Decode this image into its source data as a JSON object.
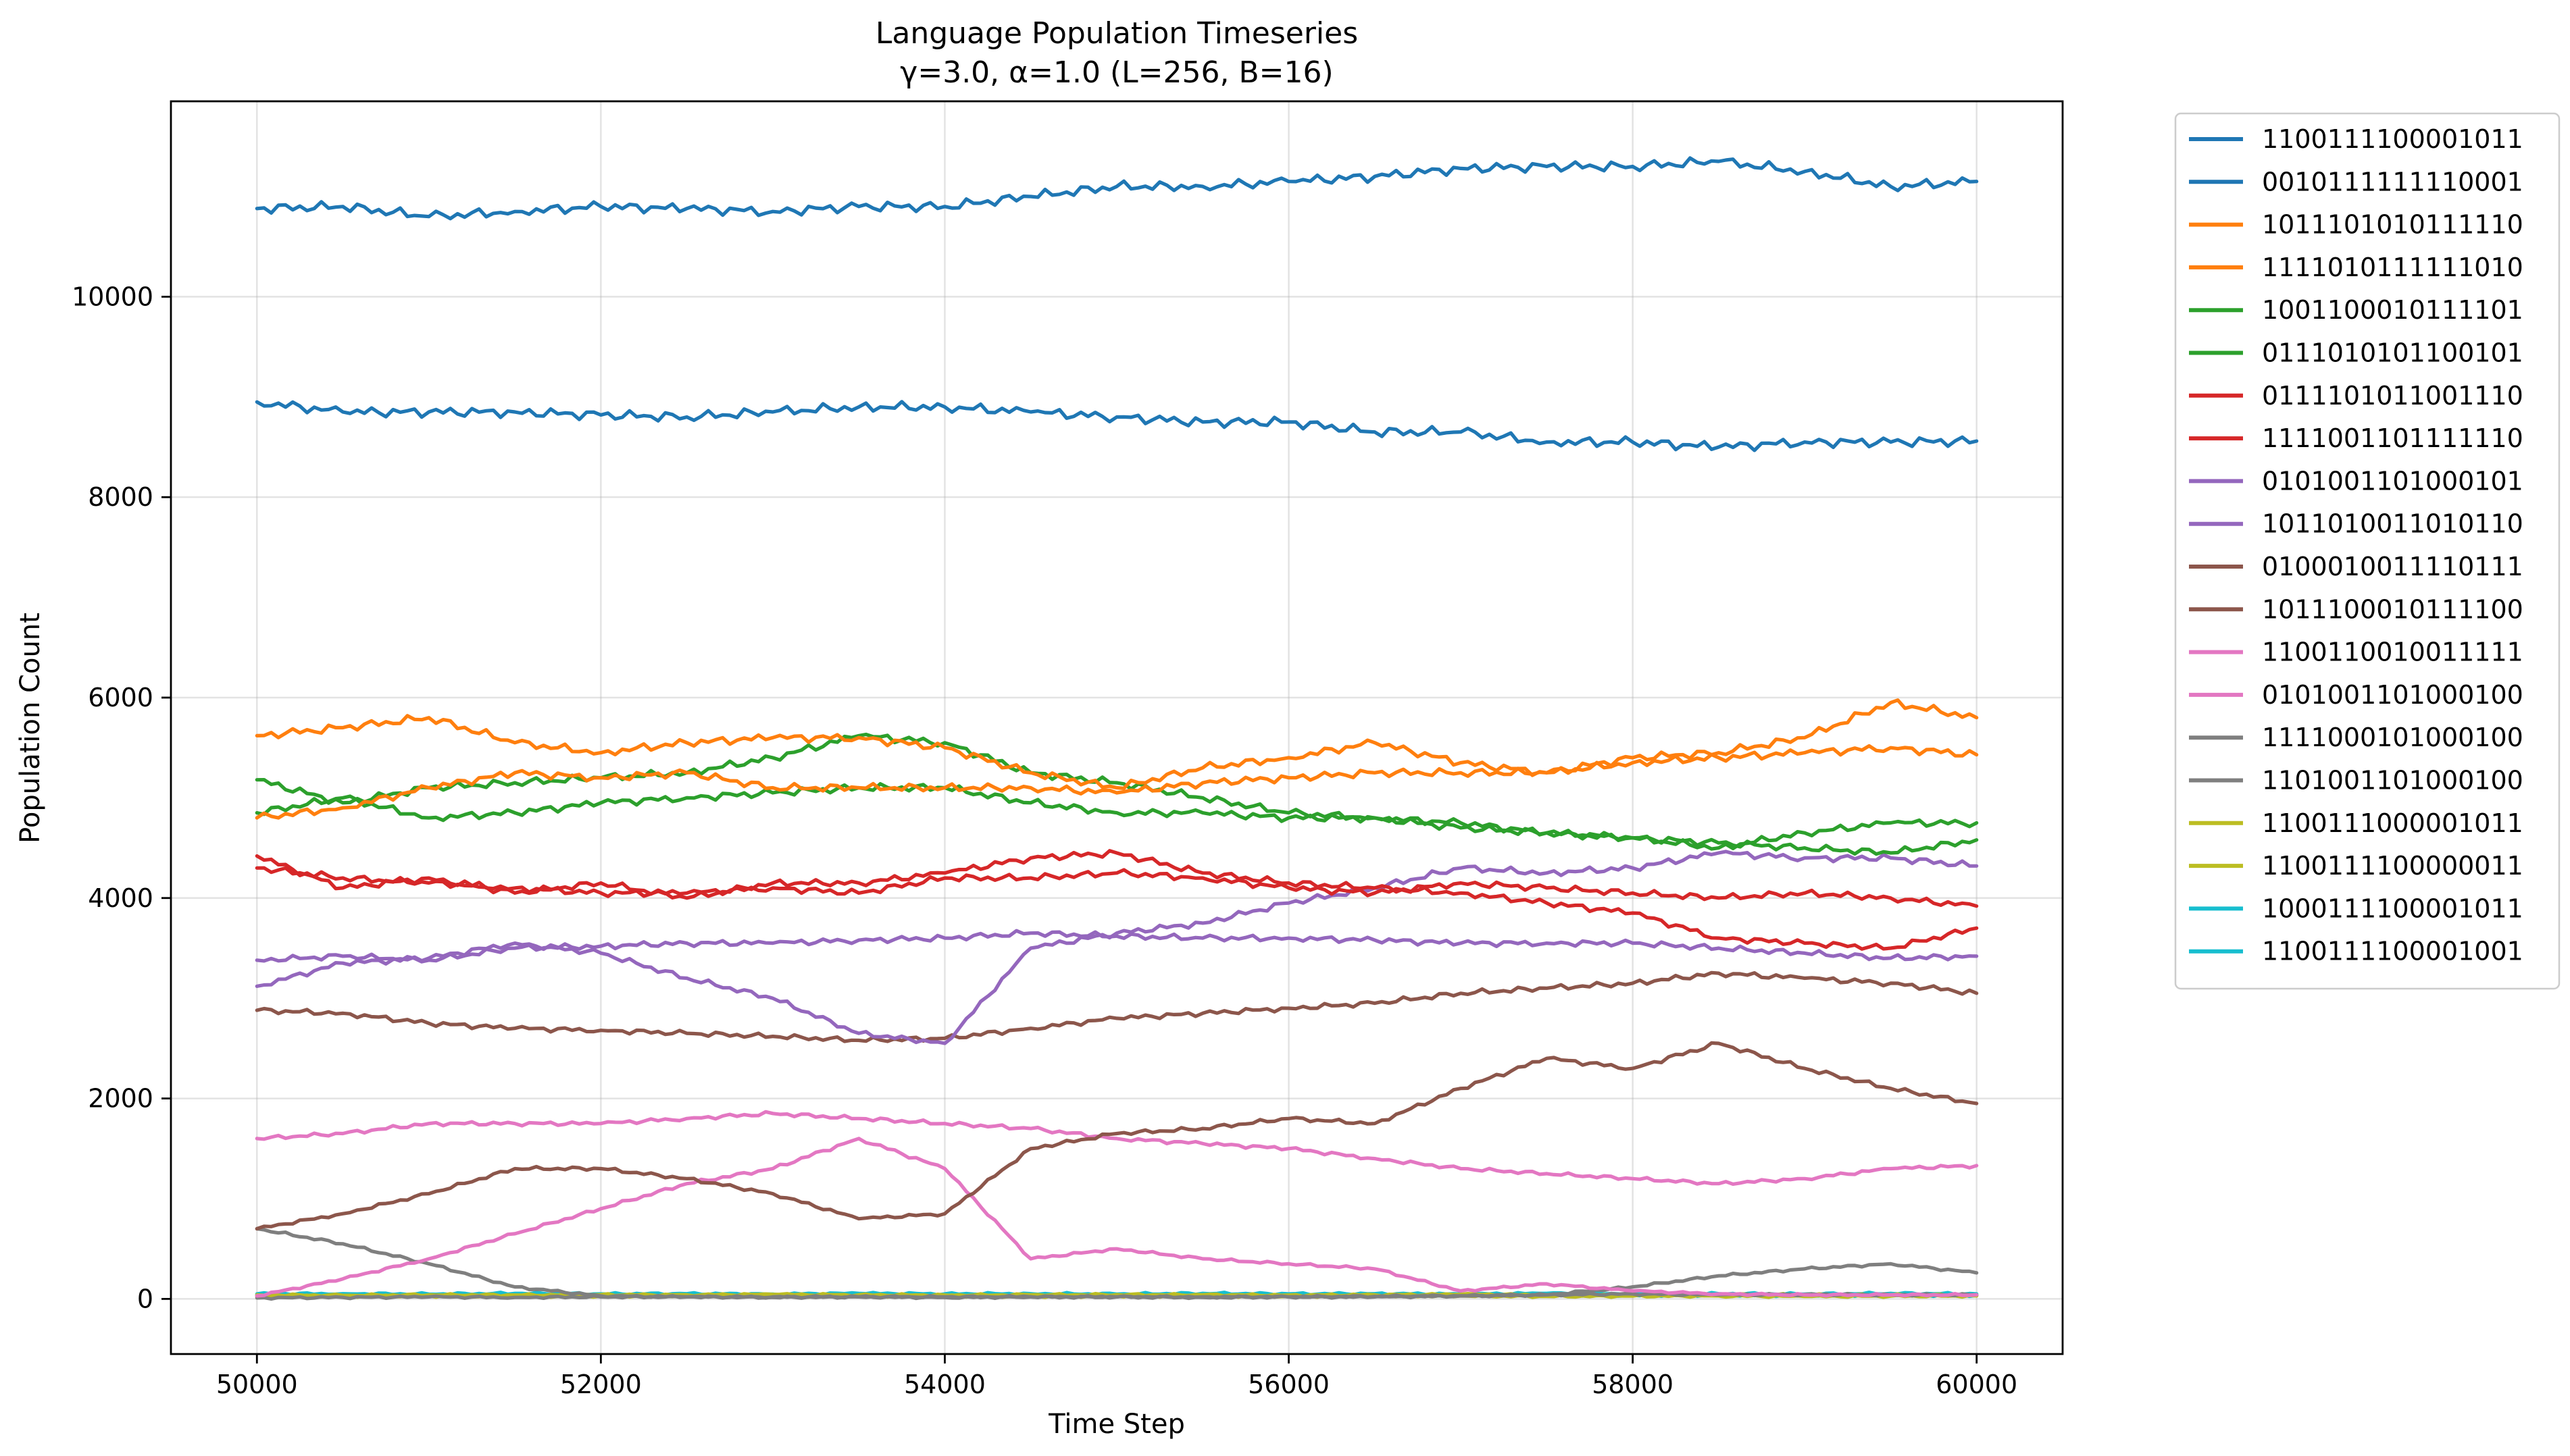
{
  "chart_data": {
    "type": "line",
    "title": "Language Population Timeseries",
    "subtitle": "γ=3.0, α=1.0 (L=256, B=16)",
    "xlabel": "Time Step",
    "ylabel": "Population Count",
    "xlim": [
      49500,
      60500
    ],
    "ylim": [
      -550,
      11950
    ],
    "xticks": [
      50000,
      52000,
      54000,
      56000,
      58000,
      60000
    ],
    "yticks": [
      0,
      2000,
      4000,
      6000,
      8000,
      10000
    ],
    "grid": true,
    "legend_placement": "outside-right",
    "x": [
      50000,
      50500,
      51000,
      51500,
      52000,
      52500,
      53000,
      53500,
      54000,
      54500,
      55000,
      55500,
      56000,
      56500,
      57000,
      57500,
      58000,
      58500,
      59000,
      59500,
      60000
    ],
    "series": [
      {
        "name": "1100111100001011",
        "color": "#1f77b4",
        "values": [
          10880,
          10900,
          10800,
          10850,
          10900,
          10880,
          10850,
          10900,
          10900,
          11000,
          11100,
          11100,
          11150,
          11200,
          11280,
          11300,
          11300,
          11350,
          11250,
          11100,
          11150
        ]
      },
      {
        "name": "0010111111110001",
        "color": "#1f77b4",
        "values": [
          8950,
          8850,
          8850,
          8850,
          8820,
          8800,
          8850,
          8900,
          8900,
          8850,
          8800,
          8750,
          8750,
          8650,
          8650,
          8550,
          8550,
          8500,
          8550,
          8550,
          8560
        ]
      },
      {
        "name": "1011101010111110",
        "color": "#ff7f0e",
        "values": [
          5620,
          5700,
          5800,
          5550,
          5450,
          5550,
          5600,
          5600,
          5500,
          5250,
          5100,
          5300,
          5400,
          5550,
          5350,
          5250,
          5400,
          5450,
          5600,
          5950,
          5800
        ]
      },
      {
        "name": "1111010111111010",
        "color": "#ff7f0e",
        "values": [
          4800,
          4900,
          5100,
          5250,
          5200,
          5250,
          5100,
          5100,
          5100,
          5100,
          5050,
          5150,
          5200,
          5250,
          5250,
          5250,
          5350,
          5400,
          5450,
          5500,
          5430
        ]
      },
      {
        "name": "1001100010111101",
        "color": "#2ca02c",
        "values": [
          5180,
          4950,
          5100,
          5150,
          5200,
          5250,
          5400,
          5620,
          5550,
          5250,
          5150,
          5000,
          4850,
          4800,
          4750,
          4650,
          4600,
          4550,
          4500,
          4450,
          4580
        ]
      },
      {
        "name": "0111010101100101",
        "color": "#2ca02c",
        "values": [
          4850,
          5000,
          4800,
          4850,
          4950,
          5000,
          5050,
          5100,
          5100,
          4950,
          4850,
          4850,
          4800,
          4800,
          4700,
          4650,
          4600,
          4500,
          4650,
          4750,
          4750
        ]
      },
      {
        "name": "0111101011001110",
        "color": "#d62728",
        "values": [
          4420,
          4100,
          4200,
          4050,
          4150,
          4000,
          4150,
          4150,
          4250,
          4400,
          4450,
          4250,
          4150,
          4100,
          4050,
          3950,
          3850,
          3600,
          3550,
          3500,
          3700
        ]
      },
      {
        "name": "1111001101111110",
        "color": "#d62728",
        "values": [
          4300,
          4200,
          4150,
          4100,
          4050,
          4050,
          4100,
          4050,
          4200,
          4200,
          4250,
          4200,
          4100,
          4050,
          4150,
          4100,
          4050,
          4000,
          4050,
          4000,
          3920
        ]
      },
      {
        "name": "0101001101000101",
        "color": "#9467bd",
        "values": [
          3120,
          3350,
          3400,
          3550,
          3450,
          3200,
          3000,
          2650,
          2550,
          3500,
          3650,
          3750,
          3950,
          4100,
          4300,
          4250,
          4300,
          4450,
          4400,
          4400,
          4320
        ]
      },
      {
        "name": "1011010011010110",
        "color": "#9467bd",
        "values": [
          3380,
          3420,
          3380,
          3500,
          3520,
          3550,
          3550,
          3580,
          3600,
          3650,
          3620,
          3600,
          3600,
          3580,
          3550,
          3550,
          3550,
          3500,
          3450,
          3400,
          3420
        ]
      },
      {
        "name": "0100010011110111",
        "color": "#8c564b",
        "values": [
          2880,
          2850,
          2750,
          2700,
          2680,
          2650,
          2620,
          2580,
          2600,
          2700,
          2800,
          2850,
          2900,
          2950,
          3050,
          3100,
          3150,
          3250,
          3200,
          3150,
          3050
        ]
      },
      {
        "name": "1011100010111100",
        "color": "#8c564b",
        "values": [
          700,
          850,
          1050,
          1300,
          1300,
          1200,
          1050,
          800,
          850,
          1500,
          1650,
          1700,
          1800,
          1750,
          2100,
          2400,
          2300,
          2550,
          2300,
          2100,
          1950
        ]
      },
      {
        "name": "1100110010011111",
        "color": "#e377c2",
        "values": [
          1600,
          1650,
          1750,
          1750,
          1750,
          1800,
          1850,
          1800,
          1750,
          1700,
          1600,
          1550,
          1500,
          1400,
          1300,
          1250,
          1200,
          1150,
          1200,
          1300,
          1330
        ]
      },
      {
        "name": "0101001101000100",
        "color": "#e377c2",
        "values": [
          30,
          200,
          400,
          650,
          900,
          1150,
          1300,
          1600,
          1300,
          400,
          500,
          400,
          350,
          300,
          80,
          150,
          80,
          50,
          40,
          40,
          40
        ]
      },
      {
        "name": "1111000101000100",
        "color": "#7f7f7f",
        "values": [
          700,
          550,
          350,
          120,
          30,
          20,
          20,
          20,
          20,
          20,
          20,
          20,
          20,
          20,
          30,
          40,
          120,
          230,
          300,
          350,
          260
        ]
      },
      {
        "name": "1101001101000100",
        "color": "#7f7f7f",
        "values": [
          10,
          15,
          20,
          15,
          20,
          20,
          15,
          20,
          15,
          20,
          20,
          15,
          20,
          25,
          30,
          40,
          50,
          40,
          45,
          40,
          40
        ]
      },
      {
        "name": "1100111000001011",
        "color": "#bcbd22",
        "values": [
          40,
          35,
          40,
          38,
          42,
          40,
          45,
          40,
          38,
          40,
          42,
          40,
          38,
          40,
          45,
          40,
          40,
          42,
          40,
          38,
          40
        ]
      },
      {
        "name": "1100111100000011",
        "color": "#bcbd22",
        "values": [
          25,
          28,
          30,
          25,
          28,
          30,
          25,
          28,
          30,
          25,
          28,
          30,
          25,
          28,
          30,
          25,
          28,
          30,
          25,
          28,
          30
        ]
      },
      {
        "name": "1000111100001011",
        "color": "#17becf",
        "values": [
          50,
          52,
          48,
          55,
          50,
          52,
          48,
          55,
          50,
          52,
          48,
          55,
          50,
          52,
          48,
          55,
          50,
          52,
          48,
          55,
          50
        ]
      },
      {
        "name": "1100111100001001",
        "color": "#17becf",
        "values": [
          35,
          38,
          36,
          40,
          35,
          38,
          36,
          40,
          35,
          38,
          36,
          40,
          35,
          38,
          36,
          40,
          35,
          38,
          36,
          40,
          35
        ]
      }
    ]
  }
}
